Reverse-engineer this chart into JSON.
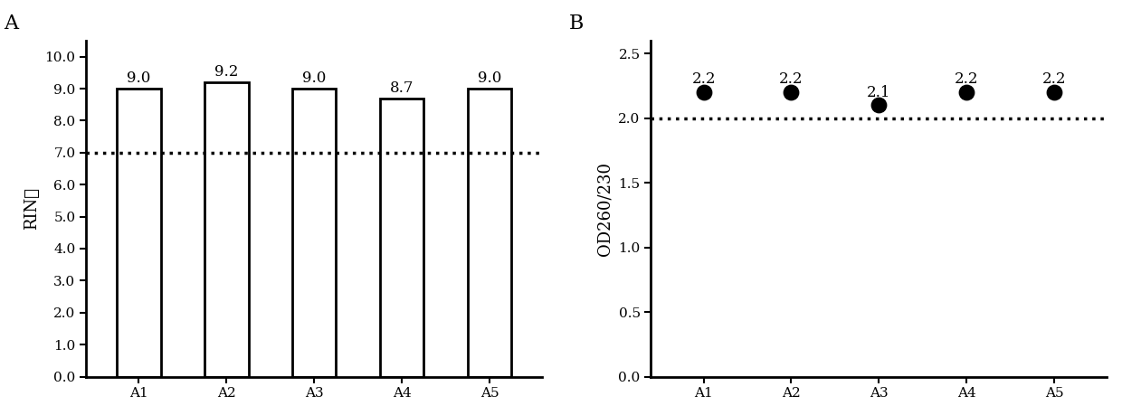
{
  "panel_A": {
    "label": "A",
    "categories": [
      "A1",
      "A2",
      "A3",
      "A4",
      "A5"
    ],
    "values": [
      9.0,
      9.2,
      9.0,
      8.7,
      9.0
    ],
    "bar_color": "white",
    "bar_edgecolor": "black",
    "bar_linewidth": 2.0,
    "ylabel": "RIN値",
    "ylim": [
      0,
      10.5
    ],
    "yticks": [
      0.0,
      1.0,
      2.0,
      3.0,
      4.0,
      5.0,
      6.0,
      7.0,
      8.0,
      9.0,
      10.0
    ],
    "ytick_labels": [
      "0.0",
      "1.0",
      "2.0",
      "3.0",
      "4.0",
      "5.0",
      "6.0",
      "7.0",
      "8.0",
      "9.0",
      "10.0"
    ],
    "hline_y": 7.0,
    "hline_style": "dotted",
    "hline_lw": 2.5,
    "value_labels": [
      "9.0",
      "9.2",
      "9.0",
      "8.7",
      "9.0"
    ],
    "value_label_fontsize": 12
  },
  "panel_B": {
    "label": "B",
    "categories": [
      "A1",
      "A2",
      "A3",
      "A4",
      "A5"
    ],
    "values": [
      2.2,
      2.2,
      2.1,
      2.2,
      2.2
    ],
    "dot_color": "black",
    "dot_size": 140,
    "ylabel": "OD260/230",
    "ylim": [
      0,
      2.6
    ],
    "yticks": [
      0.0,
      0.5,
      1.0,
      1.5,
      2.0,
      2.5
    ],
    "ytick_labels": [
      "0.0",
      "0.5",
      "1.0",
      "1.5",
      "2.0",
      "2.5"
    ],
    "hline_y": 2.0,
    "hline_style": "dotted",
    "hline_lw": 2.5,
    "value_labels": [
      "2.2",
      "2.2",
      "2.1",
      "2.2",
      "2.2"
    ],
    "value_label_fontsize": 12
  },
  "background_color": "white",
  "panel_label_fontsize": 16,
  "axis_fontsize": 13,
  "tick_fontsize": 11,
  "bar_width": 0.5
}
